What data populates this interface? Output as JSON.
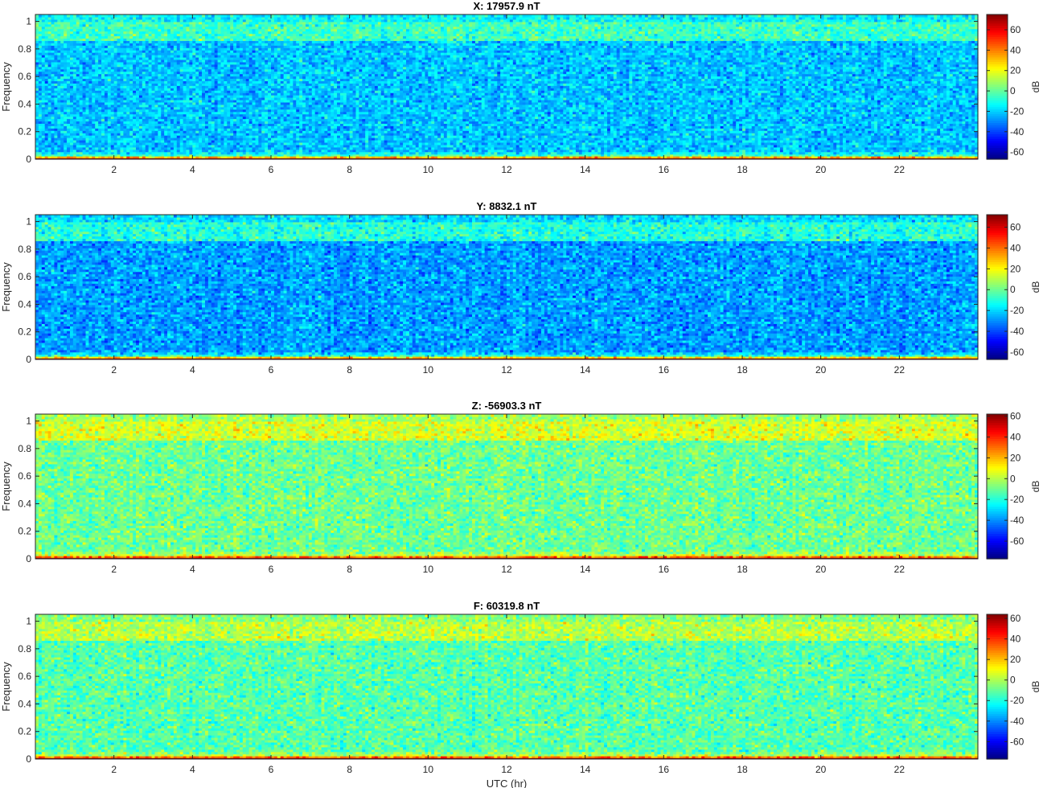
{
  "chart_data": [
    {
      "type": "heatmap",
      "title": "X: 17957.9 nT",
      "ylabel": "Frequency",
      "xlabel": "",
      "xlim": [
        0,
        24
      ],
      "ylim": [
        0,
        1.05
      ],
      "x_ticks": [
        "2",
        "4",
        "6",
        "8",
        "10",
        "12",
        "14",
        "16",
        "18",
        "20",
        "22"
      ],
      "y_ticks": [
        "0",
        "0.2",
        "0.4",
        "0.6",
        "0.8",
        "1"
      ],
      "colorbar": {
        "label": "dB",
        "range": [
          -67,
          75
        ],
        "ticks": [
          "60",
          "40",
          "20",
          "0",
          "-20",
          "-40",
          "-60"
        ]
      },
      "colormap": "jet",
      "levels_db": {
        "background": -22,
        "band_0.86_to_1.0": -5,
        "near_zero_band": 30,
        "dc_line": 70
      }
    },
    {
      "type": "heatmap",
      "title": "Y: 8832.1 nT",
      "ylabel": "Frequency",
      "xlabel": "",
      "xlim": [
        0,
        24
      ],
      "ylim": [
        0,
        1.05
      ],
      "x_ticks": [
        "2",
        "4",
        "6",
        "8",
        "10",
        "12",
        "14",
        "16",
        "18",
        "20",
        "22"
      ],
      "y_ticks": [
        "0",
        "0.2",
        "0.4",
        "0.6",
        "0.8",
        "1"
      ],
      "colorbar": {
        "label": "dB",
        "range": [
          -67,
          72
        ],
        "ticks": [
          "60",
          "40",
          "20",
          "0",
          "-20",
          "-40",
          "-60"
        ]
      },
      "colormap": "jet",
      "levels_db": {
        "background": -28,
        "band_0.86_to_1.0": -10,
        "near_zero_band": 25,
        "dc_line": 68
      }
    },
    {
      "type": "heatmap",
      "title": "Z: -56903.3 nT",
      "ylabel": "Frequency",
      "xlabel": "",
      "xlim": [
        0,
        24
      ],
      "ylim": [
        0,
        1.05
      ],
      "x_ticks": [
        "2",
        "4",
        "6",
        "8",
        "10",
        "12",
        "14",
        "16",
        "18",
        "20",
        "22"
      ],
      "y_ticks": [
        "0",
        "0.2",
        "0.4",
        "0.6",
        "0.8",
        "1"
      ],
      "colorbar": {
        "label": "dB",
        "range": [
          -77,
          62
        ],
        "ticks": [
          "60",
          "40",
          "20",
          "0",
          "-20",
          "-40",
          "-60"
        ]
      },
      "colormap": "jet",
      "levels_db": {
        "background": -10,
        "band_0.86_to_1.0": 5,
        "near_zero_band": 30,
        "dc_line": 60
      }
    },
    {
      "type": "heatmap",
      "title": "F: 60319.8 nT",
      "ylabel": "Frequency",
      "xlabel": "UTC (hr)",
      "xlim": [
        0,
        24
      ],
      "ylim": [
        0,
        1.05
      ],
      "x_ticks": [
        "2",
        "4",
        "6",
        "8",
        "10",
        "12",
        "14",
        "16",
        "18",
        "20",
        "22"
      ],
      "y_ticks": [
        "0",
        "0.2",
        "0.4",
        "0.6",
        "0.8",
        "1"
      ],
      "colorbar": {
        "label": "dB",
        "range": [
          -77,
          64
        ],
        "ticks": [
          "60",
          "40",
          "20",
          "0",
          "-20",
          "-40",
          "-60"
        ]
      },
      "colormap": "jet",
      "levels_db": {
        "background": -12,
        "band_0.86_to_1.0": 2,
        "near_zero_band": 30,
        "dc_line": 60
      }
    }
  ]
}
